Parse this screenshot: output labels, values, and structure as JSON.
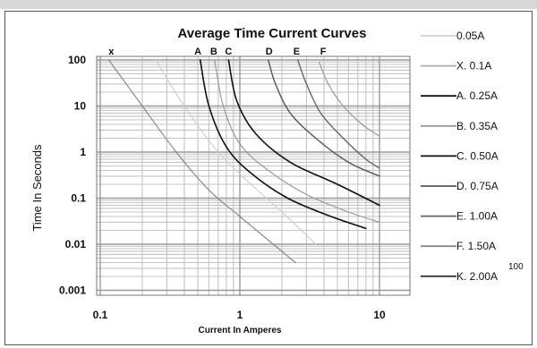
{
  "chart_data": {
    "type": "line",
    "title": "Average Time Current Curves",
    "xlabel": "Current In Amperes",
    "ylabel": "Time In Seconds",
    "x_scale": "log",
    "y_scale": "log",
    "xlim": [
      0.1,
      13
    ],
    "ylim": [
      0.001,
      140
    ],
    "x_ticks": [
      {
        "value": 0.1,
        "label": "0.1"
      },
      {
        "value": 1,
        "label": "1"
      },
      {
        "value": 10,
        "label": "10"
      }
    ],
    "y_ticks": [
      {
        "value": 100,
        "label": "100"
      },
      {
        "value": 10,
        "label": "10"
      },
      {
        "value": 1,
        "label": "1"
      },
      {
        "value": 0.1,
        "label": "0.1"
      },
      {
        "value": 0.01,
        "label": "0.01"
      },
      {
        "value": 0.001,
        "label": "0.001"
      }
    ],
    "grid": true,
    "legend_position": "right",
    "corner_note": "100",
    "legend": [
      {
        "label": "0.05A",
        "color": "#d2d2d2"
      },
      {
        "label": "X. 0.1A",
        "color": "#aaaaaa"
      },
      {
        "label": "A. 0.25A",
        "color": "#111111"
      },
      {
        "label": "B. 0.35A",
        "color": "#999999"
      },
      {
        "label": "C. 0.50A",
        "color": "#111111"
      },
      {
        "label": "D. 0.75A",
        "color": "#555555"
      },
      {
        "label": "E. 1.00A",
        "color": "#666666"
      },
      {
        "label": "F. 1.50A",
        "color": "#888888"
      },
      {
        "label": "K. 2.00A",
        "color": "#333333"
      }
    ],
    "series": [
      {
        "label": "X",
        "color": "#8a8a8a",
        "width": 1.2,
        "points": [
          [
            0.115,
            100
          ],
          [
            0.2,
            10
          ],
          [
            0.35,
            1
          ],
          [
            0.6,
            0.15
          ],
          [
            1.0,
            0.04
          ],
          [
            2.5,
            0.004
          ]
        ]
      },
      {
        "color": "#d0d0d0",
        "width": 1.2,
        "points": [
          [
            0.25,
            100
          ],
          [
            0.4,
            10
          ],
          [
            0.7,
            1
          ],
          [
            1.2,
            0.2
          ],
          [
            2.0,
            0.05
          ],
          [
            3.5,
            0.01
          ]
        ]
      },
      {
        "label": "A",
        "color": "#111111",
        "width": 1.6,
        "points": [
          [
            0.52,
            100
          ],
          [
            0.6,
            10
          ],
          [
            0.8,
            1.3
          ],
          [
            1.2,
            0.35
          ],
          [
            2.2,
            0.1
          ],
          [
            4.5,
            0.04
          ],
          [
            8.0,
            0.022
          ]
        ]
      },
      {
        "label": "B",
        "color": "#9a9a9a",
        "width": 1.2,
        "points": [
          [
            0.66,
            100
          ],
          [
            0.76,
            10
          ],
          [
            1.0,
            1.5
          ],
          [
            1.6,
            0.4
          ],
          [
            3.0,
            0.12
          ],
          [
            6.0,
            0.05
          ],
          [
            10.0,
            0.03
          ]
        ]
      },
      {
        "label": "C",
        "color": "#111111",
        "width": 1.6,
        "points": [
          [
            0.83,
            100
          ],
          [
            0.95,
            13
          ],
          [
            1.3,
            2.5
          ],
          [
            2.3,
            0.6
          ],
          [
            5.0,
            0.2
          ],
          [
            10.0,
            0.07
          ]
        ]
      },
      {
        "label": "D",
        "color": "#555555",
        "width": 1.4,
        "points": [
          [
            1.6,
            100
          ],
          [
            1.8,
            30
          ],
          [
            2.3,
            7
          ],
          [
            3.5,
            2
          ],
          [
            6.0,
            0.6
          ],
          [
            10.0,
            0.3
          ]
        ]
      },
      {
        "label": "E",
        "color": "#666666",
        "width": 1.4,
        "points": [
          [
            2.6,
            100
          ],
          [
            3.0,
            30
          ],
          [
            3.8,
            7
          ],
          [
            5.5,
            2
          ],
          [
            8.0,
            0.7
          ],
          [
            10.0,
            0.45
          ]
        ]
      },
      {
        "label": "F",
        "color": "#9a9a9a",
        "width": 1.2,
        "points": [
          [
            3.7,
            90
          ],
          [
            4.3,
            30
          ],
          [
            5.5,
            10
          ],
          [
            7.5,
            4
          ],
          [
            10.0,
            2.2
          ]
        ]
      }
    ],
    "label_positions": [
      {
        "label": "x",
        "x": 0.12
      },
      {
        "label": "A",
        "x": 0.5
      },
      {
        "label": "B",
        "x": 0.65
      },
      {
        "label": "C",
        "x": 0.83
      },
      {
        "label": "D",
        "x": 1.62
      },
      {
        "label": "E",
        "x": 2.55
      },
      {
        "label": "F",
        "x": 3.95
      }
    ]
  }
}
